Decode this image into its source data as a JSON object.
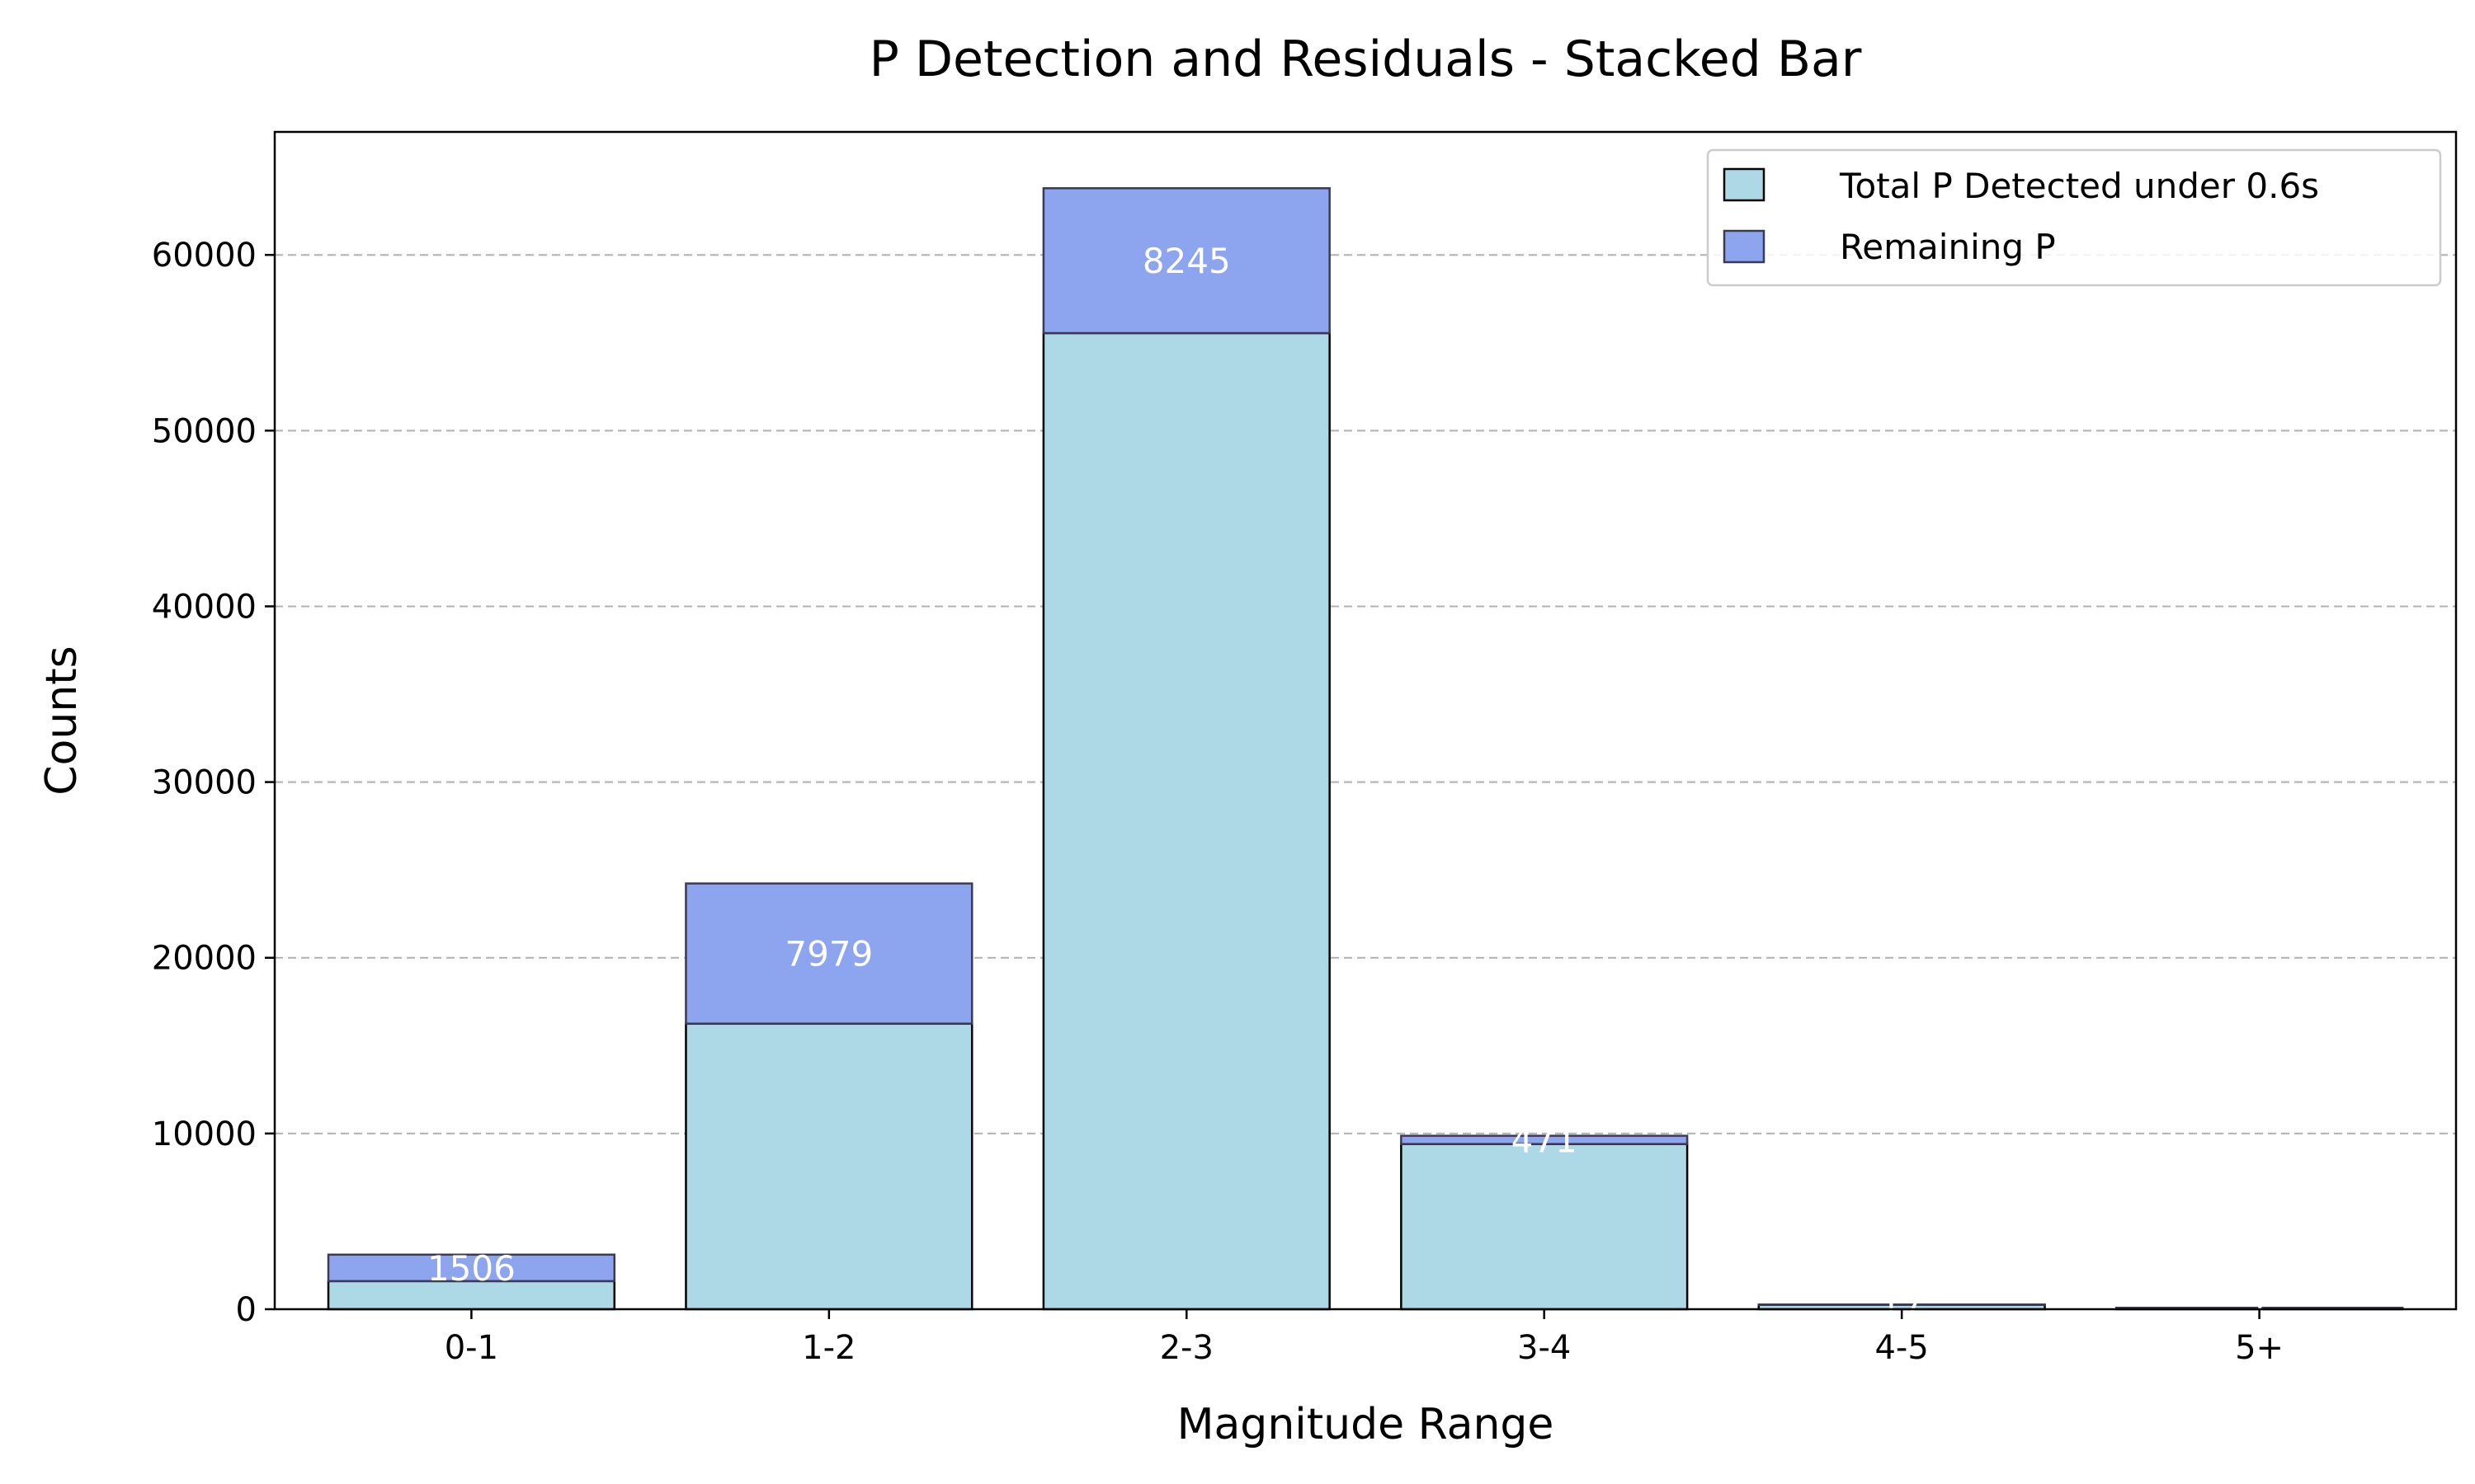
{
  "chart_data": {
    "type": "bar",
    "stacked": true,
    "title": "P Detection and Residuals - Stacked Bar",
    "xlabel": "Magnitude Range",
    "ylabel": "Counts",
    "categories": [
      "0-1",
      "1-2",
      "2-3",
      "3-4",
      "4-5",
      "5+"
    ],
    "ylim": [
      0,
      67000
    ],
    "yticks": [
      0,
      10000,
      20000,
      30000,
      40000,
      50000,
      60000
    ],
    "grid": "y-dashed",
    "legend_position": "top-right",
    "series": [
      {
        "name": "Total P Detected under 0.6s",
        "color": "#add8e6",
        "edgecolor": "#000000",
        "values": [
          1600,
          16250,
          55550,
          9400,
          250,
          80
        ]
      },
      {
        "name": "Remaining P",
        "color": "#8ca5ee",
        "edgecolor": "#3a3a55",
        "values": [
          1506,
          7979,
          8245,
          471,
          17,
          1
        ]
      }
    ],
    "segment_labels": [
      "1506",
      "7979",
      "8245",
      "471",
      "17",
      "1"
    ]
  }
}
